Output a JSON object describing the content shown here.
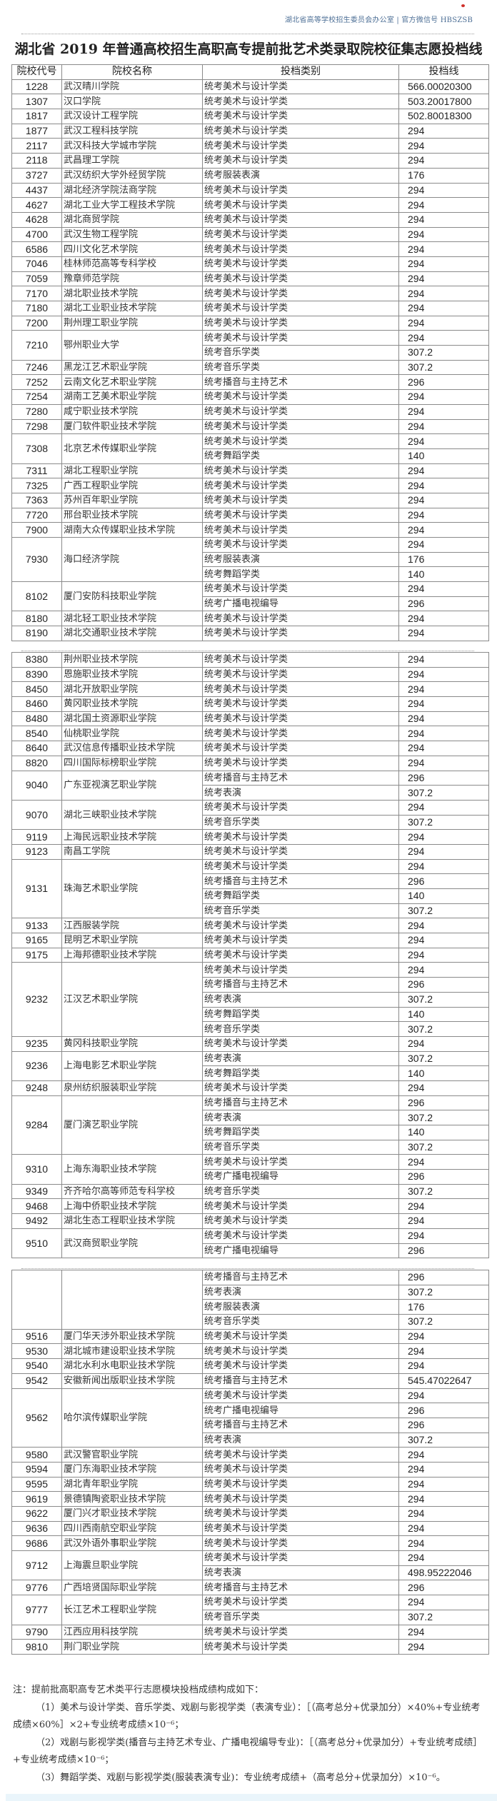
{
  "header": {
    "source": "湖北省高等学校招生委员会办公室 | 官方微信号 HBSZSB"
  },
  "title": "湖北省 2019 年普通高校招生高职高专提前批艺术类录取院校征集志愿投档线",
  "columns": [
    "院校代号",
    "院校名称",
    "投档类别",
    "投档线"
  ],
  "pages": [
    {
      "schools": [
        {
          "code": "1228",
          "name": "武汉晴川学院",
          "rows": [
            {
              "cat": "统考美术与设计学类",
              "score": "566.00020300"
            }
          ]
        },
        {
          "code": "1307",
          "name": "汉口学院",
          "rows": [
            {
              "cat": "统考美术与设计学类",
              "score": "503.20017800"
            }
          ]
        },
        {
          "code": "1817",
          "name": "武汉设计工程学院",
          "rows": [
            {
              "cat": "统考美术与设计学类",
              "score": "502.80018300"
            }
          ]
        },
        {
          "code": "1877",
          "name": "武汉工程科技学院",
          "rows": [
            {
              "cat": "统考美术与设计学类",
              "score": "294"
            }
          ]
        },
        {
          "code": "2117",
          "name": "武汉科技大学城市学院",
          "rows": [
            {
              "cat": "统考美术与设计学类",
              "score": "294"
            }
          ]
        },
        {
          "code": "2118",
          "name": "武昌理工学院",
          "rows": [
            {
              "cat": "统考美术与设计学类",
              "score": "294"
            }
          ]
        },
        {
          "code": "3727",
          "name": "武汉纺织大学外经贸学院",
          "rows": [
            {
              "cat": "统考服装表演",
              "score": "176"
            }
          ]
        },
        {
          "code": "4437",
          "name": "湖北经济学院法商学院",
          "rows": [
            {
              "cat": "统考美术与设计学类",
              "score": "294"
            }
          ]
        },
        {
          "code": "4627",
          "name": "湖北工业大学工程技术学院",
          "rows": [
            {
              "cat": "统考美术与设计学类",
              "score": "294"
            }
          ]
        },
        {
          "code": "4628",
          "name": "湖北商贸学院",
          "rows": [
            {
              "cat": "统考美术与设计学类",
              "score": "294"
            }
          ]
        },
        {
          "code": "4700",
          "name": "武汉生物工程学院",
          "rows": [
            {
              "cat": "统考美术与设计学类",
              "score": "294"
            }
          ]
        },
        {
          "code": "6586",
          "name": "四川文化艺术学院",
          "rows": [
            {
              "cat": "统考美术与设计学类",
              "score": "294"
            }
          ]
        },
        {
          "code": "7046",
          "name": "桂林师范高等专科学校",
          "rows": [
            {
              "cat": "统考美术与设计学类",
              "score": "294"
            }
          ]
        },
        {
          "code": "7059",
          "name": "豫章师范学院",
          "rows": [
            {
              "cat": "统考美术与设计学类",
              "score": "294"
            }
          ]
        },
        {
          "code": "7170",
          "name": "湖北职业技术学院",
          "rows": [
            {
              "cat": "统考美术与设计学类",
              "score": "294"
            }
          ]
        },
        {
          "code": "7180",
          "name": "湖北工业职业技术学院",
          "rows": [
            {
              "cat": "统考美术与设计学类",
              "score": "294"
            }
          ]
        },
        {
          "code": "7200",
          "name": "荆州理工职业学院",
          "rows": [
            {
              "cat": "统考美术与设计学类",
              "score": "294"
            }
          ]
        },
        {
          "code": "7210",
          "name": "鄂州职业大学",
          "rows": [
            {
              "cat": "统考美术与设计学类",
              "score": "294"
            },
            {
              "cat": "统考音乐学类",
              "score": "307.2"
            }
          ]
        },
        {
          "code": "7246",
          "name": "黑龙江艺术职业学院",
          "rows": [
            {
              "cat": "统考音乐学类",
              "score": "307.2"
            }
          ]
        },
        {
          "code": "7252",
          "name": "云南文化艺术职业学院",
          "rows": [
            {
              "cat": "统考播音与主持艺术",
              "score": "296"
            }
          ]
        },
        {
          "code": "7254",
          "name": "湖南工艺美术职业学院",
          "rows": [
            {
              "cat": "统考美术与设计学类",
              "score": "294"
            }
          ]
        },
        {
          "code": "7280",
          "name": "咸宁职业技术学院",
          "rows": [
            {
              "cat": "统考美术与设计学类",
              "score": "294"
            }
          ]
        },
        {
          "code": "7298",
          "name": "厦门软件职业技术学院",
          "rows": [
            {
              "cat": "统考美术与设计学类",
              "score": "294"
            }
          ]
        },
        {
          "code": "7308",
          "name": "北京艺术传媒职业学院",
          "rows": [
            {
              "cat": "统考美术与设计学类",
              "score": "294"
            },
            {
              "cat": "统考舞蹈学类",
              "score": "140"
            }
          ]
        },
        {
          "code": "7311",
          "name": "湖北工程职业学院",
          "rows": [
            {
              "cat": "统考美术与设计学类",
              "score": "294"
            }
          ]
        },
        {
          "code": "7325",
          "name": "广西工程职业学院",
          "rows": [
            {
              "cat": "统考美术与设计学类",
              "score": "294"
            }
          ]
        },
        {
          "code": "7363",
          "name": "苏州百年职业学院",
          "rows": [
            {
              "cat": "统考美术与设计学类",
              "score": "294"
            }
          ]
        },
        {
          "code": "7720",
          "name": "邢台职业技术学院",
          "rows": [
            {
              "cat": "统考美术与设计学类",
              "score": "294"
            }
          ]
        },
        {
          "code": "7900",
          "name": "湖南大众传媒职业技术学院",
          "rows": [
            {
              "cat": "统考美术与设计学类",
              "score": "294"
            }
          ]
        },
        {
          "code": "7930",
          "name": "海口经济学院",
          "rows": [
            {
              "cat": "统考美术与设计学类",
              "score": "294"
            },
            {
              "cat": "统考服装表演",
              "score": "176"
            },
            {
              "cat": "统考舞蹈学类",
              "score": "140"
            }
          ]
        },
        {
          "code": "8102",
          "name": "厦门安防科技职业学院",
          "rows": [
            {
              "cat": "统考美术与设计学类",
              "score": "294"
            },
            {
              "cat": "统考广播电视编导",
              "score": "296"
            }
          ]
        },
        {
          "code": "8180",
          "name": "湖北轻工职业技术学院",
          "rows": [
            {
              "cat": "统考美术与设计学类",
              "score": "294"
            }
          ]
        },
        {
          "code": "8190",
          "name": "湖北交通职业技术学院",
          "rows": [
            {
              "cat": "统考美术与设计学类",
              "score": "294"
            }
          ]
        }
      ]
    },
    {
      "schools": [
        {
          "code": "8380",
          "name": "荆州职业技术学院",
          "rows": [
            {
              "cat": "统考美术与设计学类",
              "score": "294"
            }
          ]
        },
        {
          "code": "8390",
          "name": "恩施职业技术学院",
          "rows": [
            {
              "cat": "统考美术与设计学类",
              "score": "294"
            }
          ]
        },
        {
          "code": "8450",
          "name": "湖北开放职业学院",
          "rows": [
            {
              "cat": "统考美术与设计学类",
              "score": "294"
            }
          ]
        },
        {
          "code": "8460",
          "name": "黄冈职业技术学院",
          "rows": [
            {
              "cat": "统考美术与设计学类",
              "score": "294"
            }
          ]
        },
        {
          "code": "8480",
          "name": "湖北国土资源职业学院",
          "rows": [
            {
              "cat": "统考美术与设计学类",
              "score": "294"
            }
          ]
        },
        {
          "code": "8540",
          "name": "仙桃职业学院",
          "rows": [
            {
              "cat": "统考美术与设计学类",
              "score": "294"
            }
          ]
        },
        {
          "code": "8640",
          "name": "武汉信息传播职业技术学院",
          "rows": [
            {
              "cat": "统考美术与设计学类",
              "score": "294"
            }
          ]
        },
        {
          "code": "8820",
          "name": "四川国际标榜职业学院",
          "rows": [
            {
              "cat": "统考美术与设计学类",
              "score": "294"
            }
          ]
        },
        {
          "code": "9040",
          "name": "广东亚视演艺职业学院",
          "rows": [
            {
              "cat": "统考播音与主持艺术",
              "score": "296"
            },
            {
              "cat": "统考表演",
              "score": "307.2"
            }
          ]
        },
        {
          "code": "9070",
          "name": "湖北三峡职业技术学院",
          "rows": [
            {
              "cat": "统考美术与设计学类",
              "score": "294"
            },
            {
              "cat": "统考音乐学类",
              "score": "307.2"
            }
          ]
        },
        {
          "code": "9119",
          "name": "上海民远职业技术学院",
          "rows": [
            {
              "cat": "统考美术与设计学类",
              "score": "294"
            }
          ]
        },
        {
          "code": "9123",
          "name": "南昌工学院",
          "rows": [
            {
              "cat": "统考美术与设计学类",
              "score": "294"
            }
          ]
        },
        {
          "code": "9131",
          "name": "珠海艺术职业学院",
          "rows": [
            {
              "cat": "统考美术与设计学类",
              "score": "294"
            },
            {
              "cat": "统考播音与主持艺术",
              "score": "296"
            },
            {
              "cat": "统考舞蹈学类",
              "score": "140"
            },
            {
              "cat": "统考音乐学类",
              "score": "307.2"
            }
          ]
        },
        {
          "code": "9133",
          "name": "江西服装学院",
          "rows": [
            {
              "cat": "统考美术与设计学类",
              "score": "294"
            }
          ]
        },
        {
          "code": "9165",
          "name": "昆明艺术职业学院",
          "rows": [
            {
              "cat": "统考美术与设计学类",
              "score": "294"
            }
          ]
        },
        {
          "code": "9175",
          "name": "上海邦德职业技术学院",
          "rows": [
            {
              "cat": "统考美术与设计学类",
              "score": "294"
            }
          ]
        },
        {
          "code": "9232",
          "name": "江汉艺术职业学院",
          "rows": [
            {
              "cat": "统考美术与设计学类",
              "score": "294"
            },
            {
              "cat": "统考播音与主持艺术",
              "score": "296"
            },
            {
              "cat": "统考表演",
              "score": "307.2"
            },
            {
              "cat": "统考舞蹈学类",
              "score": "140"
            },
            {
              "cat": "统考音乐学类",
              "score": "307.2"
            }
          ]
        },
        {
          "code": "9235",
          "name": "黄冈科技职业学院",
          "rows": [
            {
              "cat": "统考美术与设计学类",
              "score": "294"
            }
          ]
        },
        {
          "code": "9236",
          "name": "上海电影艺术职业学院",
          "rows": [
            {
              "cat": "统考表演",
              "score": "307.2"
            },
            {
              "cat": "统考舞蹈学类",
              "score": "140"
            }
          ]
        },
        {
          "code": "9248",
          "name": "泉州纺织服装职业学院",
          "rows": [
            {
              "cat": "统考美术与设计学类",
              "score": "294"
            }
          ]
        },
        {
          "code": "9284",
          "name": "厦门演艺职业学院",
          "rows": [
            {
              "cat": "统考播音与主持艺术",
              "score": "296"
            },
            {
              "cat": "统考表演",
              "score": "307.2"
            },
            {
              "cat": "统考舞蹈学类",
              "score": "140"
            },
            {
              "cat": "统考音乐学类",
              "score": "307.2"
            }
          ]
        },
        {
          "code": "9310",
          "name": "上海东海职业技术学院",
          "rows": [
            {
              "cat": "统考美术与设计学类",
              "score": "294"
            },
            {
              "cat": "统考广播电视编导",
              "score": "296"
            }
          ]
        },
        {
          "code": "9349",
          "name": "齐齐哈尔高等师范专科学校",
          "rows": [
            {
              "cat": "统考音乐学类",
              "score": "307.2"
            }
          ]
        },
        {
          "code": "9468",
          "name": "上海中侨职业技术学院",
          "rows": [
            {
              "cat": "统考美术与设计学类",
              "score": "294"
            }
          ]
        },
        {
          "code": "9492",
          "name": "湖北生态工程职业技术学院",
          "rows": [
            {
              "cat": "统考美术与设计学类",
              "score": "294"
            }
          ]
        },
        {
          "code": "9510",
          "name": "武汉商贸职业学院",
          "rows": [
            {
              "cat": "统考美术与设计学类",
              "score": "294"
            },
            {
              "cat": "统考广播电视编导",
              "score": "296"
            }
          ]
        }
      ]
    },
    {
      "schools": [
        {
          "code": "",
          "name": "",
          "rows": [
            {
              "cat": "统考播音与主持艺术",
              "score": "296"
            },
            {
              "cat": "统考表演",
              "score": "307.2"
            },
            {
              "cat": "统考服装表演",
              "score": "176"
            },
            {
              "cat": "统考音乐学类",
              "score": "307.2"
            }
          ]
        },
        {
          "code": "9516",
          "name": "厦门华天涉外职业技术学院",
          "rows": [
            {
              "cat": "统考美术与设计学类",
              "score": "294"
            }
          ]
        },
        {
          "code": "9530",
          "name": "湖北城市建设职业技术学院",
          "rows": [
            {
              "cat": "统考美术与设计学类",
              "score": "294"
            }
          ]
        },
        {
          "code": "9540",
          "name": "湖北水利水电职业技术学院",
          "rows": [
            {
              "cat": "统考美术与设计学类",
              "score": "294"
            }
          ]
        },
        {
          "code": "9542",
          "name": "安徽新闻出版职业技术学院",
          "rows": [
            {
              "cat": "统考播音与主持艺术",
              "score": "545.47022647"
            }
          ]
        },
        {
          "code": "9562",
          "name": "哈尔滨传媒职业学院",
          "rows": [
            {
              "cat": "统考美术与设计学类",
              "score": "294"
            },
            {
              "cat": "统考广播电视编导",
              "score": "296"
            },
            {
              "cat": "统考播音与主持艺术",
              "score": "296"
            },
            {
              "cat": "统考表演",
              "score": "307.2"
            }
          ]
        },
        {
          "code": "9580",
          "name": "武汉警官职业学院",
          "rows": [
            {
              "cat": "统考美术与设计学类",
              "score": "294"
            }
          ]
        },
        {
          "code": "9594",
          "name": "厦门东海职业技术学院",
          "rows": [
            {
              "cat": "统考美术与设计学类",
              "score": "294"
            }
          ]
        },
        {
          "code": "9595",
          "name": "湖北青年职业学院",
          "rows": [
            {
              "cat": "统考美术与设计学类",
              "score": "294"
            }
          ]
        },
        {
          "code": "9619",
          "name": "景德镇陶瓷职业技术学院",
          "rows": [
            {
              "cat": "统考美术与设计学类",
              "score": "294"
            }
          ]
        },
        {
          "code": "9622",
          "name": "厦门兴才职业技术学院",
          "rows": [
            {
              "cat": "统考美术与设计学类",
              "score": "294"
            }
          ]
        },
        {
          "code": "9636",
          "name": "四川西南航空职业学院",
          "rows": [
            {
              "cat": "统考美术与设计学类",
              "score": "294"
            }
          ]
        },
        {
          "code": "9686",
          "name": "武汉外语外事职业学院",
          "rows": [
            {
              "cat": "统考美术与设计学类",
              "score": "294"
            }
          ]
        },
        {
          "code": "9712",
          "name": "上海震旦职业学院",
          "rows": [
            {
              "cat": "统考美术与设计学类",
              "score": "294"
            },
            {
              "cat": "统考表演",
              "score": "498.95222046"
            }
          ]
        },
        {
          "code": "9776",
          "name": "广西培贤国际职业学院",
          "rows": [
            {
              "cat": "统考播音与主持艺术",
              "score": "296"
            }
          ]
        },
        {
          "code": "9777",
          "name": "长江艺术工程职业学院",
          "rows": [
            {
              "cat": "统考美术与设计学类",
              "score": "294"
            },
            {
              "cat": "统考音乐学类",
              "score": "307.2"
            }
          ]
        },
        {
          "code": "9790",
          "name": "江西应用科技学院",
          "rows": [
            {
              "cat": "统考美术与设计学类",
              "score": "294"
            }
          ]
        },
        {
          "code": "9810",
          "name": "荆门职业学院",
          "rows": [
            {
              "cat": "统考美术与设计学类",
              "score": "294"
            }
          ]
        }
      ]
    }
  ],
  "notes": {
    "heading": "注：提前批高职高专艺术类平行志愿模块投档成绩构成如下：",
    "items": [
      "（1）美术与设计学类、音乐学类、戏剧与影视学类（表演专业）：［（高考总分+优录加分）×40%+专业统考成绩×60%］×2+专业统考成绩×10⁻⁶；",
      "（2）戏剧与影视学类(播音与主持艺术专业、广播电视编导专业)：［（高考总分+优录加分）+专业统考成绩］+专业统考成绩×10⁻⁶；",
      "（3）舞蹈学类、戏剧与影视学类(服装表演专业)：专业统考成绩+（高考总分+优录加分）×10⁻⁶。"
    ]
  }
}
